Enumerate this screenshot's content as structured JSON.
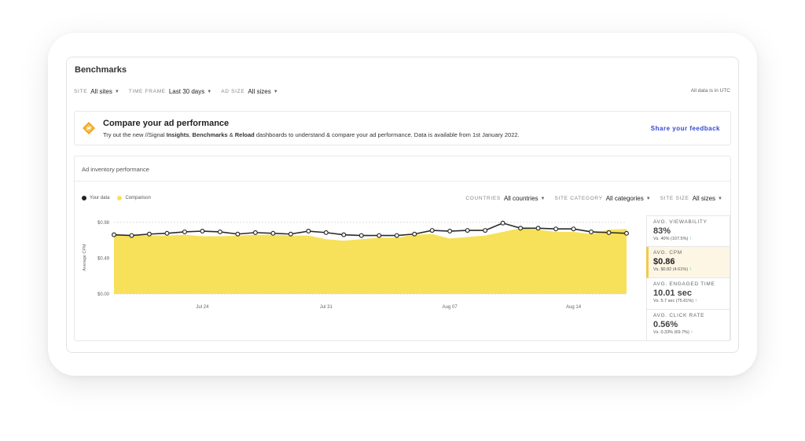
{
  "page_title": "Benchmarks",
  "filters": [
    {
      "label": "SITE",
      "value": "All sites"
    },
    {
      "label": "TIME FRAME",
      "value": "Last 30 days"
    },
    {
      "label": "AD SIZE",
      "value": "All sizes"
    }
  ],
  "utc_note": "All data is in UTC",
  "banner": {
    "heading": "Compare your ad performance",
    "text_pre": "Try out the new //Signal ",
    "text_b1": "Insights",
    "text_sep1": ", ",
    "text_b2": "Benchmarks",
    "text_sep2": " & ",
    "text_b3": "Reload",
    "text_post": " dashboards to understand & compare your ad performance. Data is available from 1st January 2022.",
    "feedback_link": "Share your feedback"
  },
  "card": {
    "title": "Ad inventory performance",
    "legend": [
      {
        "name": "Your data",
        "color": "#222222"
      },
      {
        "name": "Comparison",
        "color": "#f7e15a"
      }
    ],
    "filters": [
      {
        "label": "COUNTRIES",
        "value": "All countries"
      },
      {
        "label": "SITE CATEGORY",
        "value": "All categories"
      },
      {
        "label": "SITE SIZE",
        "value": "All sizes"
      }
    ]
  },
  "chart_data": {
    "type": "line",
    "ylabel": "Average CPM",
    "y_ticks": [
      "$0.98",
      "$0.49",
      "$0.00"
    ],
    "ylim": [
      0,
      1.0
    ],
    "x_ticks": [
      {
        "index": 5,
        "label": "Jul 24"
      },
      {
        "index": 12,
        "label": "Jul 31"
      },
      {
        "index": 19,
        "label": "Aug 07"
      },
      {
        "index": 26,
        "label": "Aug 14"
      }
    ],
    "series": [
      {
        "name": "Your data",
        "color": "#2b2b2b",
        "values": [
          0.81,
          0.8,
          0.82,
          0.83,
          0.85,
          0.86,
          0.85,
          0.82,
          0.84,
          0.83,
          0.82,
          0.86,
          0.84,
          0.81,
          0.8,
          0.8,
          0.8,
          0.82,
          0.87,
          0.86,
          0.87,
          0.87,
          0.97,
          0.9,
          0.9,
          0.89,
          0.89,
          0.85,
          0.84,
          0.83
        ]
      },
      {
        "name": "Comparison",
        "color": "#f7e15a",
        "values": [
          0.8,
          0.81,
          0.8,
          0.8,
          0.81,
          0.79,
          0.79,
          0.8,
          0.81,
          0.81,
          0.8,
          0.8,
          0.75,
          0.73,
          0.75,
          0.77,
          0.77,
          0.81,
          0.82,
          0.76,
          0.78,
          0.8,
          0.85,
          0.9,
          0.88,
          0.85,
          0.85,
          0.82,
          0.88,
          0.89
        ]
      }
    ]
  },
  "metrics": [
    {
      "label": "AVG. VIEWABILITY",
      "value": "83%",
      "vs": "Vs. 40% (107.5%)",
      "active": false
    },
    {
      "label": "AVG. CPM",
      "value": "$0.86",
      "vs": "Vs. $0.82 (4.61%)",
      "active": true
    },
    {
      "label": "AVG. ENGAGED TIME",
      "value": "10.01 sec",
      "vs": "Vs. 5.7 sec (75.61%)",
      "active": false
    },
    {
      "label": "AVG. CLICK RATE",
      "value": "0.56%",
      "vs": "Vs. 0.33% (69.7%)",
      "active": false
    }
  ]
}
